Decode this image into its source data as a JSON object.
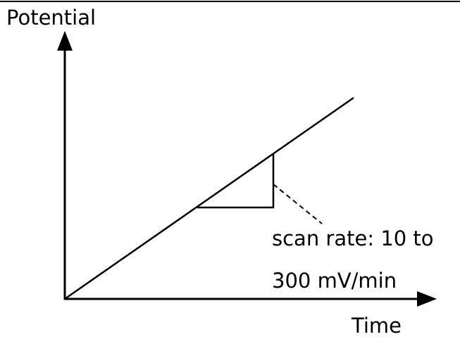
{
  "axes": {
    "y_label": "Potential",
    "x_label": "Time"
  },
  "annotation": {
    "lines": [
      "scan rate: 10 to",
      "300 mV/min"
    ]
  }
}
